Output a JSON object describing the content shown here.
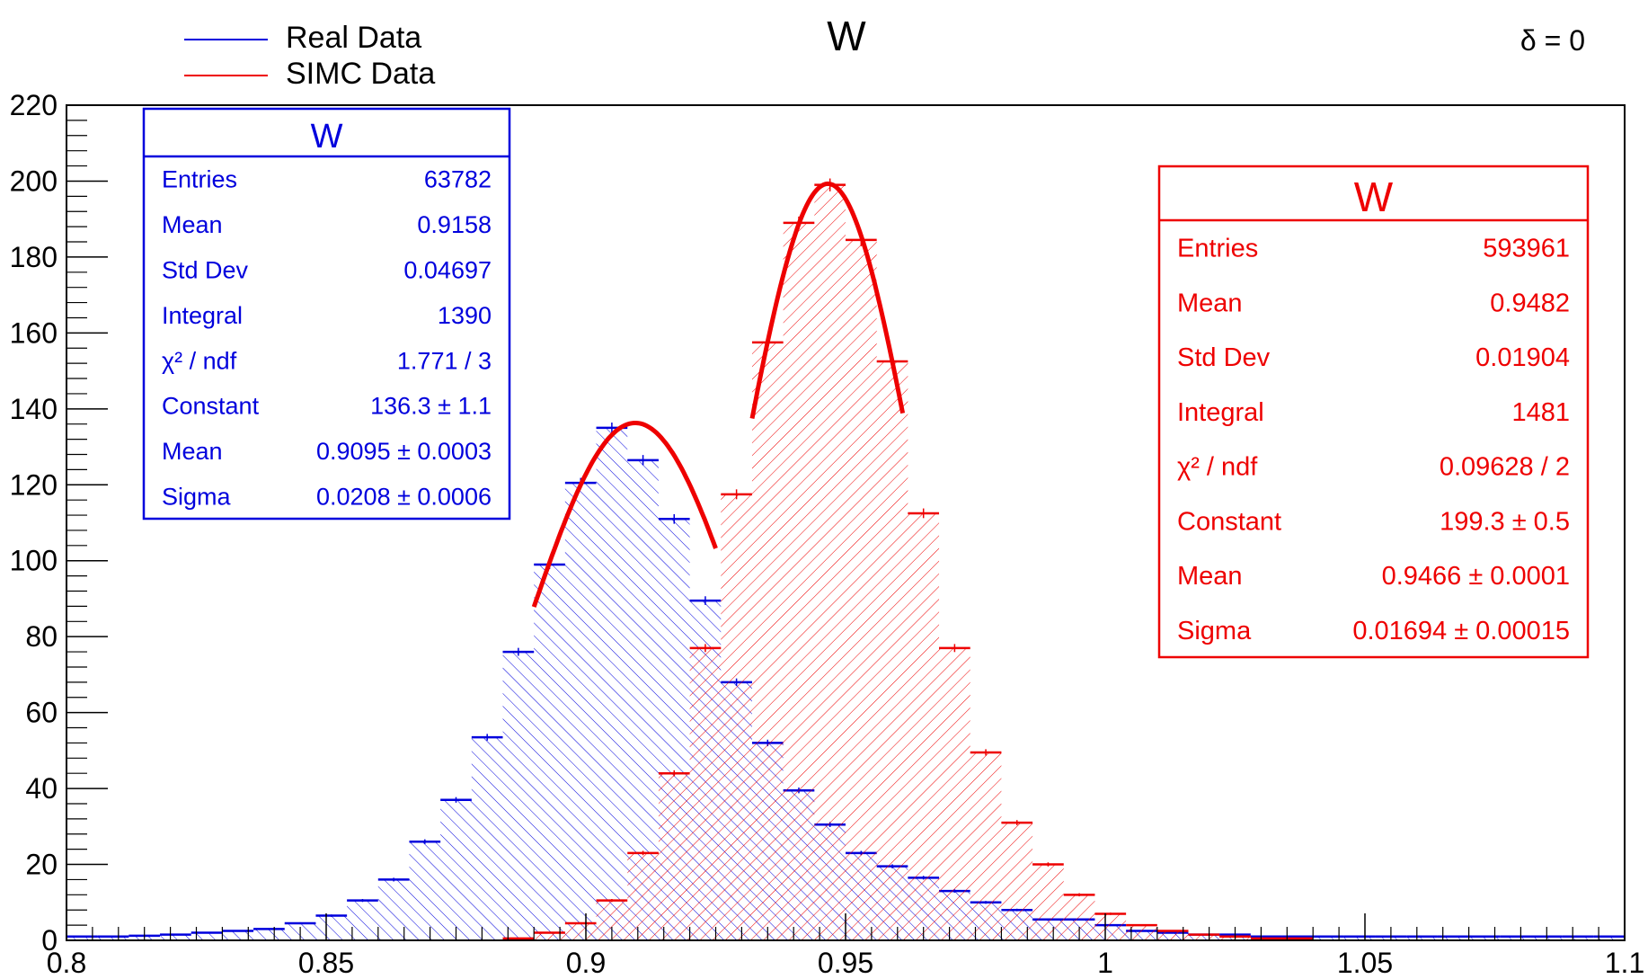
{
  "chart_data": {
    "type": "bar",
    "title": "W",
    "annotation": "δ = 0",
    "xlabel": "",
    "ylabel": "",
    "xlim": [
      0.8,
      1.1
    ],
    "ylim": [
      0,
      220
    ],
    "bin_width": 0.006,
    "x_ticks": [
      "0.8",
      "0.85",
      "0.9",
      "0.95",
      "1",
      "1.05",
      "1.1"
    ],
    "y_ticks": [
      "0",
      "20",
      "40",
      "60",
      "80",
      "100",
      "120",
      "140",
      "160",
      "180",
      "200",
      "220"
    ],
    "legend": {
      "placement": "top-left",
      "entries": [
        {
          "label": "Real Data",
          "color": "#0000dd"
        },
        {
          "label": "SIMC Data",
          "color": "#ee0000"
        }
      ]
    },
    "series": [
      {
        "name": "Real Data",
        "color": "#0000dd",
        "values": [
          1,
          1,
          1.2,
          1.5,
          2,
          2.5,
          3,
          4.5,
          6.5,
          10.5,
          16,
          26,
          37,
          53.5,
          76,
          99,
          120.5,
          135,
          126.5,
          111,
          89.5,
          68,
          52,
          39.5,
          30.5,
          23,
          19.5,
          16.5,
          13,
          10,
          8,
          5.5,
          5.5,
          4,
          2.5,
          2,
          1.5,
          1.5,
          1,
          1,
          1,
          1,
          1,
          1,
          1,
          1,
          1,
          1,
          1,
          1
        ],
        "stats": {
          "title": "W",
          "rows": [
            {
              "label": "Entries",
              "value": "63782"
            },
            {
              "label": "Mean",
              "value": "0.9158"
            },
            {
              "label": "Std Dev",
              "value": "0.04697"
            },
            {
              "label": "Integral",
              "value": "1390"
            },
            {
              "label": "χ² / ndf",
              "value": "1.771 / 3"
            },
            {
              "label": "Constant",
              "value": "136.3 ± 1.1"
            },
            {
              "label": "Mean",
              "value": "0.9095 ± 0.0003"
            },
            {
              "label": "Sigma",
              "value": "0.0208 ± 0.0006"
            }
          ]
        },
        "fit": {
          "type": "gaus",
          "constant": 136.3,
          "mean": 0.9095,
          "sigma": 0.0208,
          "range": [
            0.89,
            0.925
          ]
        }
      },
      {
        "name": "SIMC Data",
        "color": "#ee0000",
        "values": [
          0,
          0,
          0,
          0,
          0,
          0,
          0,
          0,
          0,
          0,
          0,
          0,
          0,
          0,
          0.5,
          2,
          4.5,
          10.5,
          23,
          44,
          77,
          117.5,
          157.5,
          189,
          199,
          184.5,
          152.5,
          112.5,
          77,
          49.5,
          31,
          20,
          12,
          7,
          4,
          2.5,
          1.5,
          1,
          0.5,
          0.5,
          0,
          0,
          0,
          0,
          0,
          0,
          0,
          0,
          0,
          0
        ],
        "stats": {
          "title": "W",
          "rows": [
            {
              "label": "Entries",
              "value": "593961"
            },
            {
              "label": "Mean",
              "value": "0.9482"
            },
            {
              "label": "Std Dev",
              "value": "0.01904"
            },
            {
              "label": "Integral",
              "value": "1481"
            },
            {
              "label": "χ² / ndf",
              "value": "0.09628 / 2"
            },
            {
              "label": "Constant",
              "value": "199.3 ± 0.5"
            },
            {
              "label": "Mean",
              "value": "0.9466 ± 0.0001"
            },
            {
              "label": "Sigma",
              "value": "0.01694 ± 0.00015"
            }
          ]
        },
        "fit": {
          "type": "gaus",
          "constant": 199.3,
          "mean": 0.9466,
          "sigma": 0.01694,
          "range": [
            0.932,
            0.961
          ]
        }
      }
    ]
  }
}
